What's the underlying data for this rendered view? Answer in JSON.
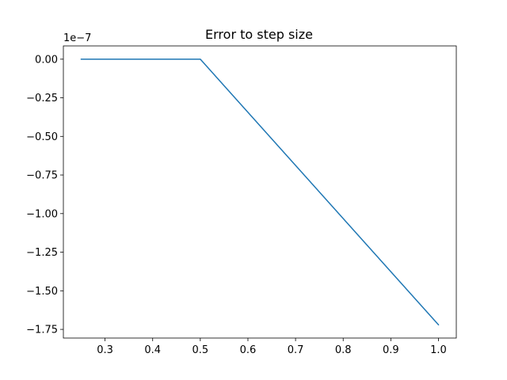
{
  "chart_data": {
    "type": "line",
    "title": "Error to step size",
    "xlabel": "",
    "ylabel": "",
    "y_offset_label": "1e−7",
    "y_scale": 1e-07,
    "xlim": [
      0.2125,
      1.0375
    ],
    "ylim": [
      -1.806,
      0.086
    ],
    "x_ticks": [
      0.3,
      0.4,
      0.5,
      0.6,
      0.7,
      0.8,
      0.9,
      1.0
    ],
    "x_tick_labels": [
      "0.3",
      "0.4",
      "0.5",
      "0.6",
      "0.7",
      "0.8",
      "0.9",
      "1.0"
    ],
    "y_ticks": [
      0.0,
      -0.25,
      -0.5,
      -0.75,
      -1.0,
      -1.25,
      -1.5,
      -1.75
    ],
    "y_tick_labels": [
      "0.00",
      "−0.25",
      "−0.50",
      "−0.75",
      "−1.00",
      "−1.25",
      "−1.50",
      "−1.75"
    ],
    "grid": false,
    "series": [
      {
        "color": "#1f77b4",
        "x": [
          0.25,
          0.5,
          1.0
        ],
        "y": [
          0.0,
          0.0,
          -1.72
        ]
      }
    ]
  }
}
